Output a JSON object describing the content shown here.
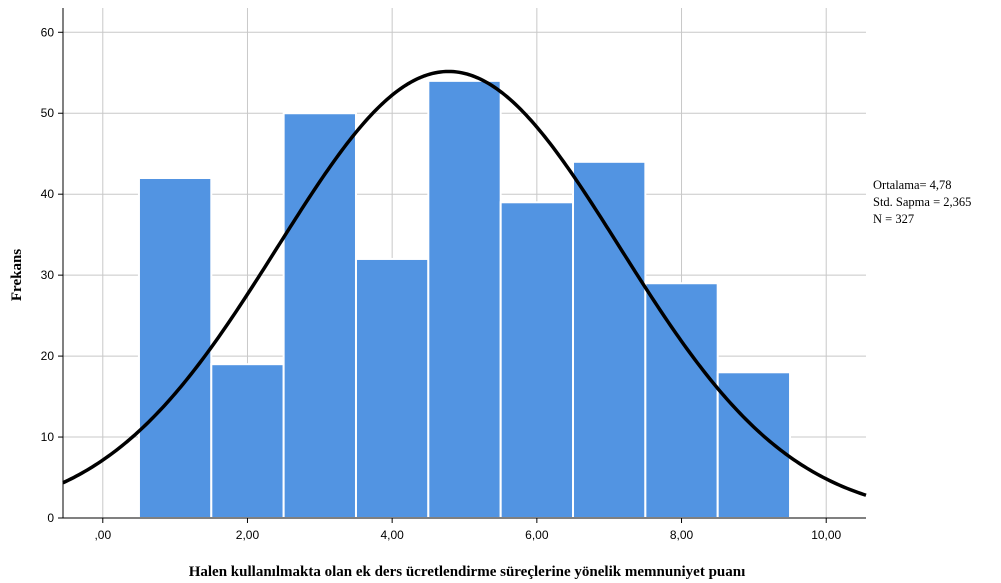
{
  "chart_data": {
    "type": "bar",
    "subtype": "histogram",
    "xlabel": "Halen kullanılmakta olan ek ders ücretlendirme süreçlerine yönelik memnuniyet puanı",
    "ylabel": "Frekans",
    "x_ticks": [
      ",00",
      "2,00",
      "4,00",
      "6,00",
      "8,00",
      "10,00"
    ],
    "x_tick_values": [
      0,
      2,
      4,
      6,
      8,
      10
    ],
    "y_ticks": [
      "0",
      "10",
      "20",
      "30",
      "40",
      "50",
      "60"
    ],
    "y_tick_values": [
      0,
      10,
      20,
      30,
      40,
      50,
      60
    ],
    "xlim": [
      -0.55,
      10.55
    ],
    "ylim": [
      0,
      63
    ],
    "bins": [
      {
        "start": 0.5,
        "end": 1.5,
        "value": 42
      },
      {
        "start": 1.5,
        "end": 2.5,
        "value": 19
      },
      {
        "start": 2.5,
        "end": 3.5,
        "value": 50
      },
      {
        "start": 3.5,
        "end": 4.5,
        "value": 32
      },
      {
        "start": 4.5,
        "end": 5.5,
        "value": 54
      },
      {
        "start": 5.5,
        "end": 6.5,
        "value": 39
      },
      {
        "start": 6.5,
        "end": 7.5,
        "value": 44
      },
      {
        "start": 7.5,
        "end": 8.5,
        "value": 29
      },
      {
        "start": 8.5,
        "end": 9.5,
        "value": 18
      }
    ],
    "normal_curve": {
      "mean": 4.78,
      "sd": 2.365,
      "n": 327,
      "bin_width": 1
    },
    "stats": [
      "Ortalama=  4,78",
      "Std. Sapma = 2,365",
      "N = 327"
    ],
    "colors": {
      "bar": "#5294e2",
      "bar_edge": "#ffffff",
      "curve": "#000000",
      "grid": "#c8c8c8"
    },
    "grid": true
  }
}
